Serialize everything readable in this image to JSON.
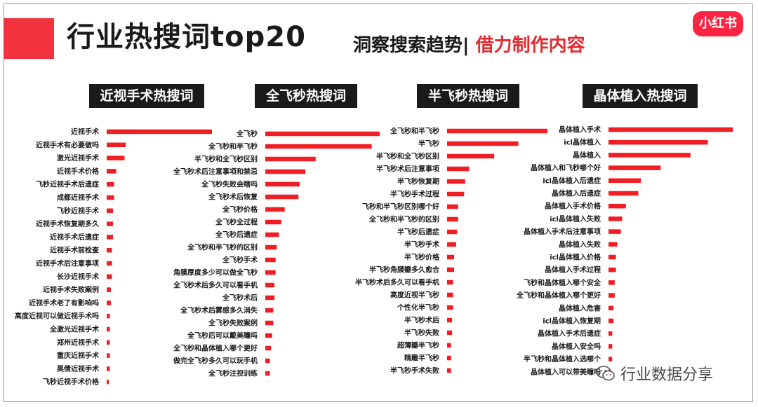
{
  "header": {
    "title": "行业热搜词top20",
    "subtitle_main": "洞察搜索趋势",
    "subtitle_sep": "|",
    "subtitle_highlight": "借力制作内容",
    "logo_text": "小红书"
  },
  "watermark": {
    "text": "行业数据分享",
    "icon": "wechat-icon"
  },
  "colors": {
    "bar": "#f01e23",
    "accent": "#f2323c",
    "logo": "#ff2442",
    "panel_title_bg": "#1a1a1a"
  },
  "chart_data": [
    {
      "type": "bar",
      "orientation": "horizontal",
      "title": "近视手术热搜词",
      "categories": [
        "近视手术",
        "近视手术有必要做吗",
        "激光近视手术",
        "近视手术价格",
        "飞秒近视手术后遗症",
        "成都近视手术",
        "飞秒近视手术",
        "近视手术恢复期多久",
        "近视手术后遗症",
        "近视手术前检查",
        "近视手术后注意事项",
        "长沙近视手术",
        "近视手术失败案例",
        "近视手术老了有影响吗",
        "高度近视可以做近视手术吗",
        "全激光近视手术",
        "郑州近视手术",
        "重庆近视手术",
        "昊倩近视手术",
        "飞秒近视手术价格"
      ],
      "values": [
        100,
        18,
        17,
        9,
        7,
        7,
        6,
        6,
        6,
        5,
        5,
        5,
        4,
        4,
        3,
        3,
        3,
        3,
        3,
        2
      ]
    },
    {
      "type": "bar",
      "orientation": "horizontal",
      "title": "全飞秒热搜词",
      "categories": [
        "全飞秒",
        "全飞秒和半飞秒",
        "半飞秒和全飞秒区别",
        "全飞秒术后注意事项和禁忌",
        "全飞秒失败会瞎吗",
        "全飞秒术后恢复",
        "全飞秒价格",
        "全飞秒全过程",
        "全飞秒后遗症",
        "全飞秒和半飞秒的区别",
        "全飞秒手术",
        "角膜厚度多少可以做全飞秒",
        "全飞秒术后多久可以看手机",
        "全飞秒术后",
        "全飞秒术后雾感多久消失",
        "全飞秒失败案例",
        "全飞秒后可以戴美瞳吗",
        "全飞秒和晶体植入哪个更好",
        "做完全飞秒多久可以玩手机",
        "全飞秒注视训练"
      ],
      "values": [
        100,
        93,
        44,
        35,
        30,
        29,
        17,
        14,
        12,
        10,
        9,
        9,
        8,
        8,
        7,
        7,
        6,
        5,
        4,
        4
      ]
    },
    {
      "type": "bar",
      "orientation": "horizontal",
      "title": "半飞秒热搜词",
      "categories": [
        "全飞秒和半飞秒",
        "半飞秒",
        "半飞秒和全飞秒区别",
        "半飞秒术后注意事项",
        "半飞秒恢复期",
        "半飞秒手术过程",
        "飞秒和半飞秒区别哪个好",
        "全飞秒和半飞秒的区别",
        "半飞秒后遗症",
        "半飞秒手术",
        "半飞秒价格",
        "半飞秒角膜瓣多久愈合",
        "半飞秒术后多久可以看手机",
        "高度近视半飞秒",
        "个性化半飞秒",
        "半飞秒术后",
        "半飞秒失败",
        "超薄瓣半飞秒",
        "精雕半飞秒",
        "半飞秒手术失败"
      ],
      "values": [
        100,
        71,
        47,
        22,
        18,
        17,
        11,
        11,
        10,
        9,
        7,
        7,
        6,
        6,
        6,
        5,
        5,
        4,
        4,
        4
      ]
    },
    {
      "type": "bar",
      "orientation": "horizontal",
      "title": "晶体植入热搜词",
      "categories": [
        "晶体植入手术",
        "icl晶体植入",
        "晶体植入",
        "晶体植入和飞秒哪个好",
        "icl晶体植入后遗症",
        "晶体植入后遗症",
        "晶体植入手术价格",
        "icl晶体植入失败",
        "晶体植入手术后注意事项",
        "晶体植入失败",
        "icl晶体植入价格",
        "晶体植入手术过程",
        "飞秒和晶体植入哪个安全",
        "全飞秒和晶体植入哪个更好",
        "晶体植入危害",
        "icl晶体植入恢复期",
        "晶体植入手术后遗症",
        "晶体植入安全吗",
        "半飞秒和晶体植入选哪个",
        "晶体植入可以带美瞳吗"
      ],
      "values": [
        100,
        80,
        66,
        42,
        26,
        24,
        14,
        11,
        10,
        7,
        6,
        6,
        5,
        5,
        4,
        4,
        3,
        3,
        3,
        2
      ]
    }
  ]
}
